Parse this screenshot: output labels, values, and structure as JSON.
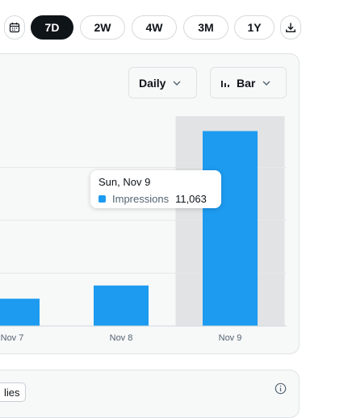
{
  "range_tabs": [
    {
      "label": "7D",
      "active": true
    },
    {
      "label": "2W",
      "active": false
    },
    {
      "label": "4W",
      "active": false
    },
    {
      "label": "3M",
      "active": false
    },
    {
      "label": "1Y",
      "active": false
    }
  ],
  "icons": {
    "calendar": "calendar-icon",
    "download": "download-icon",
    "chevron": "chevron-down-icon",
    "chart_type": "bar-chart-icon",
    "info": "info-icon"
  },
  "controls": {
    "interval_label": "Daily",
    "chart_type_label": "Bar"
  },
  "colors": {
    "accent": "#1d9bf0",
    "active_tab": "#0f1419",
    "hover_band": "#e1e3e5"
  },
  "chart_data": {
    "type": "bar",
    "categories": [
      "Nov 7",
      "Nov 8",
      "Nov 9"
    ],
    "series": [
      {
        "name": "Impressions",
        "values": [
          1550,
          2300,
          11063
        ]
      }
    ],
    "ylim": [
      0,
      12000
    ],
    "grid": true,
    "highlighted_category": "Nov 9"
  },
  "tooltip": {
    "date": "Sun, Nov 9",
    "series_label": "Impressions",
    "value": "11,063"
  },
  "second_card": {
    "tag_label": "lies"
  }
}
